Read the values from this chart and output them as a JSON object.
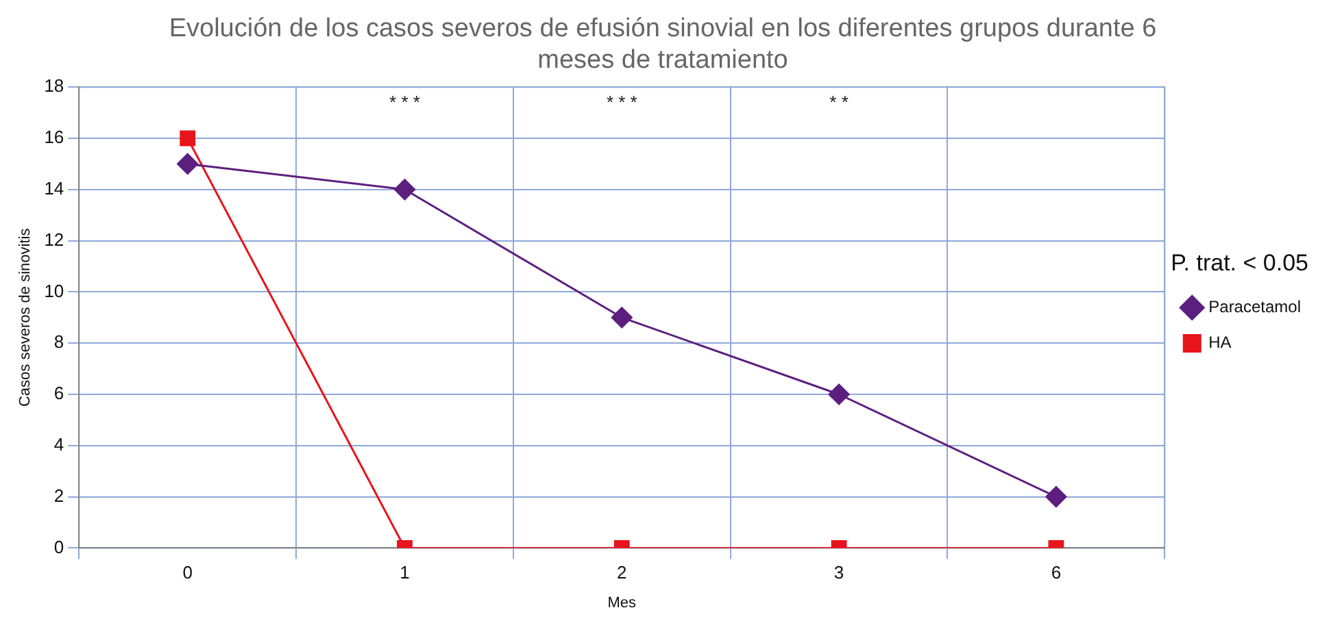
{
  "chart_data": {
    "type": "line",
    "title": "Evolución de los casos severos de efusión sinovial en los diferentes grupos durante 6 meses de tratamiento",
    "xlabel": "Mes",
    "ylabel": "Casos severos de sinovitis",
    "legend_title": "P. trat. < 0.05",
    "categories": [
      "0",
      "1",
      "2",
      "3",
      "6"
    ],
    "series": [
      {
        "name": "Paracetamol",
        "color": "#5c1f7f",
        "marker": "diamond",
        "values": [
          15,
          14,
          9,
          6,
          2
        ]
      },
      {
        "name": "HA",
        "color": "#e8141c",
        "marker": "square",
        "values": [
          16,
          0,
          0,
          0,
          0
        ]
      }
    ],
    "ylim": [
      0,
      18
    ],
    "yticks": [
      0,
      2,
      4,
      6,
      8,
      10,
      12,
      14,
      16,
      18
    ],
    "grid": true,
    "legend": "right",
    "annotations": [
      "* * *",
      "* * *",
      "* *"
    ]
  }
}
